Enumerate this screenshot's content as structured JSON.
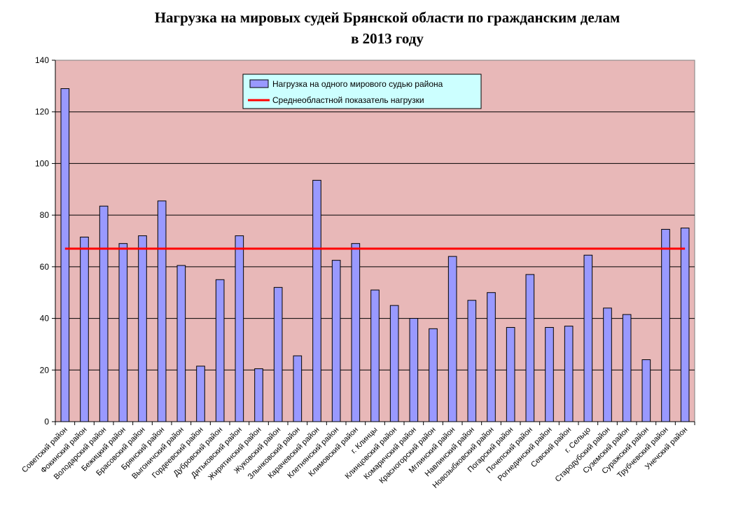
{
  "chart_data": {
    "type": "bar",
    "title_lines": [
      "Нагрузка на мировых судей Брянской области по гражданским делам",
      "в 2013 году"
    ],
    "categories": [
      "Советский район",
      "Фокинский район",
      "Володарский район",
      "Бежицкий район",
      "Брасовский район",
      "Брянский район",
      "Выгоничский район",
      "Гордеевский район",
      "Дубровский район",
      "Дятьковский район",
      "Жирятинский район",
      "Жуковский район",
      "Злынковский район",
      "Карачевский район",
      "Клетнянский район",
      "Климовский район",
      "г. Клинцы",
      "Клинцовский район",
      "Комаричский район",
      "Красногорский район",
      "Мглинский район",
      "Навлинский район",
      "Новозыбковский район",
      "Погарский район",
      "Почепский район",
      "Рогнединский район",
      "Севский район",
      "г. Сельцо",
      "Стародубский район",
      "Суземский район",
      "Суражский район",
      "Трубчевский район",
      "Унечский район"
    ],
    "series": [
      {
        "name": "Нагрузка на одного мирового судью района",
        "type": "bar",
        "color": "#9999ff",
        "values": [
          129,
          71.5,
          83.5,
          69,
          72,
          85.5,
          60.5,
          21.5,
          55,
          72,
          20.5,
          52,
          25.5,
          93.5,
          62.5,
          69,
          51,
          45,
          40,
          36,
          64,
          47,
          50,
          36.5,
          57,
          36.5,
          37,
          64.5,
          44,
          41.5,
          24,
          74.5,
          75
        ]
      },
      {
        "name": "Среднеобластной показатель нагрузки",
        "type": "line",
        "color": "#ff0000",
        "value": 67
      }
    ],
    "ylim": [
      0,
      140
    ],
    "yticks": [
      0,
      20,
      40,
      60,
      80,
      100,
      120,
      140
    ],
    "grid": true,
    "legend_position": "top-center",
    "plot_background": "#e8b8b8",
    "legend_background": "#ccffff"
  }
}
